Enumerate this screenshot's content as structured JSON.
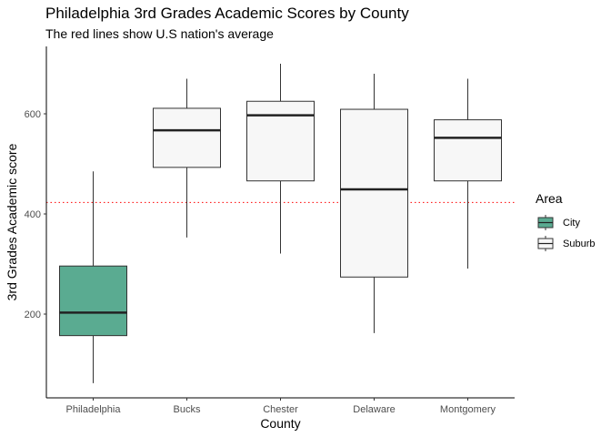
{
  "chart_data": {
    "type": "boxplot",
    "title": "Philadelphia 3rd Grades Academic Scores by County",
    "subtitle": "The red lines show U.S nation's average",
    "xlabel": "County",
    "ylabel": "3rd Grades Academic score",
    "ylim": [
      40,
      730
    ],
    "yticks": [
      200,
      400,
      600
    ],
    "grid": false,
    "reference_line": {
      "y": 423,
      "color": "#ff0000",
      "style": "dotted"
    },
    "categories": [
      "Philadelphia",
      "Bucks",
      "Chester",
      "Delaware",
      "Montgomery"
    ],
    "boxes": [
      {
        "category": "Philadelphia",
        "area": "City",
        "min": 62,
        "q1": 157,
        "median": 203,
        "q3": 296,
        "max": 485
      },
      {
        "category": "Bucks",
        "area": "Suburb",
        "min": 353,
        "q1": 493,
        "median": 567,
        "q3": 611,
        "max": 670
      },
      {
        "category": "Chester",
        "area": "Suburb",
        "min": 321,
        "q1": 466,
        "median": 597,
        "q3": 625,
        "max": 700
      },
      {
        "category": "Delaware",
        "area": "Suburb",
        "min": 162,
        "q1": 274,
        "median": 449,
        "q3": 609,
        "max": 680
      },
      {
        "category": "Montgomery",
        "area": "Suburb",
        "min": 291,
        "q1": 466,
        "median": 552,
        "q3": 588,
        "max": 670
      }
    ],
    "legend": {
      "title": "Area",
      "position": "right",
      "entries": [
        {
          "label": "City",
          "color": "#5aab91"
        },
        {
          "label": "Suburb",
          "color": "#f7f7f7"
        }
      ]
    }
  }
}
